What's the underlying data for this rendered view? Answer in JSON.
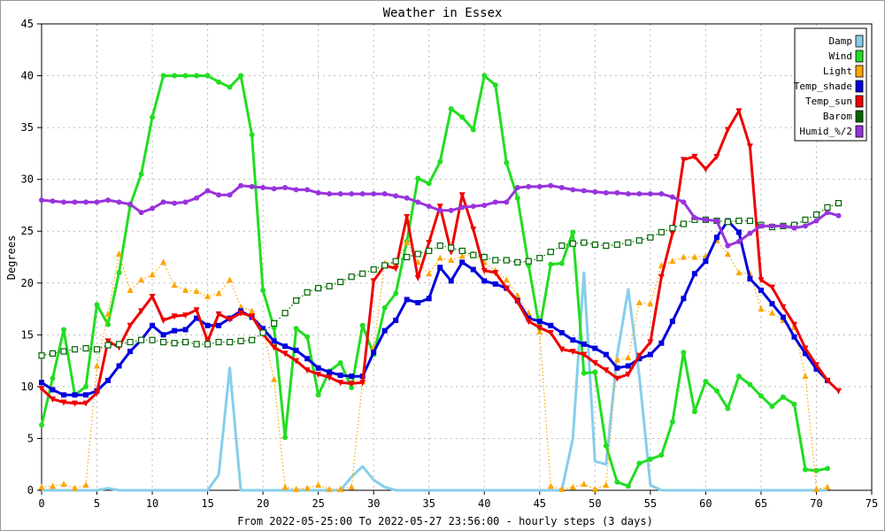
{
  "chart_data": {
    "type": "line",
    "title": "Weather in Essex",
    "xlabel": "From 2022-05-25:00 To 2022-05-27 23:56:00 - hourly steps (3 days)",
    "ylabel": "Degrees",
    "xlim": [
      0,
      75
    ],
    "ylim": [
      0,
      45
    ],
    "xticks": [
      0,
      5,
      10,
      15,
      20,
      25,
      30,
      35,
      40,
      45,
      50,
      55,
      60,
      65,
      70,
      75
    ],
    "yticks": [
      0,
      5,
      10,
      15,
      20,
      25,
      30,
      35,
      40,
      45
    ],
    "grid": true,
    "legend_position": "top-right",
    "series": [
      {
        "name": "Damp",
        "color": "#87ceeb",
        "marker": "none",
        "style": "solid",
        "values": [
          0,
          0,
          0,
          0,
          0,
          0,
          0.2,
          0,
          0,
          0,
          0,
          0,
          0,
          0,
          0,
          0,
          1.5,
          11.8,
          0,
          0,
          0,
          0,
          0,
          0,
          0,
          0,
          0,
          0,
          1.3,
          2.3,
          1.0,
          0.3,
          0,
          0,
          0,
          0,
          0,
          0,
          0,
          0,
          0,
          0,
          0,
          0,
          0,
          0,
          0,
          0,
          5.0,
          21.0,
          2.8,
          2.5,
          13.0,
          19.4,
          11.0,
          0.5,
          0,
          0,
          0,
          0,
          0,
          0,
          0,
          0,
          0,
          0,
          0,
          0,
          0,
          0,
          0,
          0
        ]
      },
      {
        "name": "Wind",
        "color": "#22dd22",
        "marker": "circle",
        "style": "solid",
        "values": [
          6.3,
          10.8,
          15.5,
          9.2,
          10.0,
          17.9,
          16.0,
          21.0,
          27.5,
          30.5,
          36.0,
          40,
          40,
          40,
          40,
          40,
          39.4,
          38.9,
          40,
          34.3,
          19.3,
          15.7,
          5.1,
          15.6,
          14.8,
          9.2,
          11.5,
          12.3,
          9.9,
          15.9,
          13.1,
          17.6,
          19.0,
          24.0,
          30.1,
          29.6,
          31.7,
          36.8,
          36.0,
          34.8,
          40,
          39.1,
          31.6,
          28.2,
          21.7,
          15.6,
          21.8,
          21.9,
          24.9,
          11.3,
          11.4,
          4.3,
          0.8,
          0.4,
          2.6,
          3.0,
          3.4,
          6.6,
          13.3,
          7.6,
          10.5,
          9.6,
          7.9,
          11.0,
          10.2,
          9.1,
          8.1,
          9.0,
          8.3,
          2.0,
          1.9,
          2.1
        ]
      },
      {
        "name": "Light",
        "color": "#ffa500",
        "marker": "triangle",
        "style": "dotted",
        "values": [
          0.3,
          0.4,
          0.6,
          0.2,
          0.5,
          12.0,
          17.0,
          22.8,
          19.3,
          20.3,
          20.8,
          22.0,
          19.8,
          19.3,
          19.2,
          18.7,
          19.0,
          20.3,
          17.7,
          17.3,
          15.6,
          10.7,
          0.3,
          0.1,
          0.2,
          0.5,
          0.1,
          0.1,
          0.3,
          10.5,
          13.8,
          21.9,
          21.8,
          23.9,
          22.0,
          20.9,
          22.4,
          22.2,
          22.6,
          22.8,
          22.0,
          21.2,
          20.3,
          18.8,
          17.1,
          15.3,
          0.4,
          0.1,
          0.3,
          0.6,
          0.1,
          0.5,
          12.6,
          12.8,
          18.1,
          18.0,
          21.7,
          22.1,
          22.5,
          22.5,
          22.6,
          24.1,
          22.8,
          21.0,
          20.9,
          17.5,
          17.1,
          16.4,
          15.7,
          11.0,
          0.1,
          0.3
        ]
      },
      {
        "name": "Temp_shade",
        "color": "#0000dd",
        "marker": "square",
        "style": "solid",
        "values": [
          10.4,
          9.7,
          9.2,
          9.2,
          9.2,
          9.6,
          10.6,
          12.0,
          13.4,
          14.5,
          15.9,
          15.0,
          15.4,
          15.5,
          16.6,
          15.9,
          15.9,
          16.6,
          17.3,
          16.7,
          15.6,
          14.4,
          13.9,
          13.5,
          12.7,
          11.8,
          11.4,
          11.1,
          11.0,
          11.0,
          13.3,
          15.4,
          16.4,
          18.4,
          18.1,
          18.5,
          21.5,
          20.2,
          22.0,
          21.3,
          20.2,
          19.9,
          19.5,
          18.3,
          16.6,
          16.3,
          15.9,
          15.2,
          14.5,
          14.1,
          13.7,
          13.1,
          11.8,
          12.0,
          12.7,
          13.1,
          14.2,
          16.3,
          18.5,
          20.9,
          22.1,
          24.4,
          26.0,
          24.9,
          20.4,
          19.3,
          18.0,
          16.7,
          14.8,
          13.2,
          11.7,
          10.6
        ]
      },
      {
        "name": "Temp_sun",
        "color": "#ee0000",
        "marker": "triangle-down",
        "style": "solid",
        "values": [
          9.8,
          8.8,
          8.5,
          8.4,
          8.4,
          9.4,
          14.4,
          13.8,
          15.9,
          17.3,
          18.7,
          16.4,
          16.8,
          16.9,
          17.4,
          14.4,
          17.0,
          16.5,
          17.1,
          16.8,
          15.1,
          13.8,
          13.2,
          12.5,
          11.6,
          11.2,
          10.9,
          10.4,
          10.3,
          10.4,
          20.2,
          21.7,
          21.4,
          26.4,
          20.5,
          23.9,
          27.4,
          23.0,
          28.5,
          25.2,
          21.2,
          21.0,
          19.5,
          18.2,
          16.3,
          15.7,
          15.2,
          13.6,
          13.4,
          13.1,
          12.3,
          11.6,
          10.8,
          11.2,
          13.0,
          14.3,
          20.6,
          24.8,
          31.9,
          32.2,
          31.0,
          32.2,
          34.8,
          36.6,
          33.2,
          20.3,
          19.6,
          17.7,
          16.0,
          13.7,
          12.1,
          10.6,
          9.6
        ]
      },
      {
        "name": "Barom",
        "color": "#006600",
        "marker": "open-square",
        "style": "dotted",
        "values": [
          13.0,
          13.2,
          13.4,
          13.6,
          13.7,
          13.6,
          14.0,
          14.1,
          14.3,
          14.5,
          14.5,
          14.3,
          14.2,
          14.3,
          14.1,
          14.1,
          14.3,
          14.3,
          14.4,
          14.5,
          15.2,
          16.1,
          17.1,
          18.3,
          19.1,
          19.5,
          19.7,
          20.1,
          20.6,
          20.9,
          21.3,
          21.7,
          22.1,
          22.5,
          22.8,
          23.1,
          23.6,
          23.4,
          23.1,
          22.7,
          22.5,
          22.2,
          22.2,
          22.0,
          22.1,
          22.4,
          23.0,
          23.6,
          23.8,
          23.9,
          23.7,
          23.6,
          23.7,
          23.9,
          24.1,
          24.4,
          24.9,
          25.3,
          25.7,
          26.1,
          26.1,
          26.0,
          25.9,
          26.0,
          26.0,
          25.6,
          25.4,
          25.5,
          25.6,
          26.1,
          26.6,
          27.3,
          27.7
        ]
      },
      {
        "name": "Humid_%/2",
        "color": "#9933dd",
        "marker": "circle",
        "style": "solid",
        "values": [
          28.0,
          27.9,
          27.8,
          27.8,
          27.8,
          27.8,
          28.0,
          27.8,
          27.6,
          26.8,
          27.2,
          27.8,
          27.7,
          27.8,
          28.2,
          28.9,
          28.5,
          28.5,
          29.4,
          29.3,
          29.2,
          29.1,
          29.2,
          29.0,
          29.0,
          28.7,
          28.6,
          28.6,
          28.6,
          28.6,
          28.6,
          28.6,
          28.4,
          28.2,
          27.8,
          27.4,
          27.0,
          27.0,
          27.3,
          27.4,
          27.5,
          27.8,
          27.8,
          29.2,
          29.3,
          29.3,
          29.4,
          29.2,
          29.0,
          28.9,
          28.8,
          28.7,
          28.7,
          28.6,
          28.6,
          28.6,
          28.6,
          28.3,
          27.8,
          26.3,
          26.1,
          26.0,
          23.6,
          24.0,
          24.8,
          25.5,
          25.5,
          25.5,
          25.3,
          25.5,
          26.0,
          26.8,
          26.5
        ]
      }
    ]
  }
}
